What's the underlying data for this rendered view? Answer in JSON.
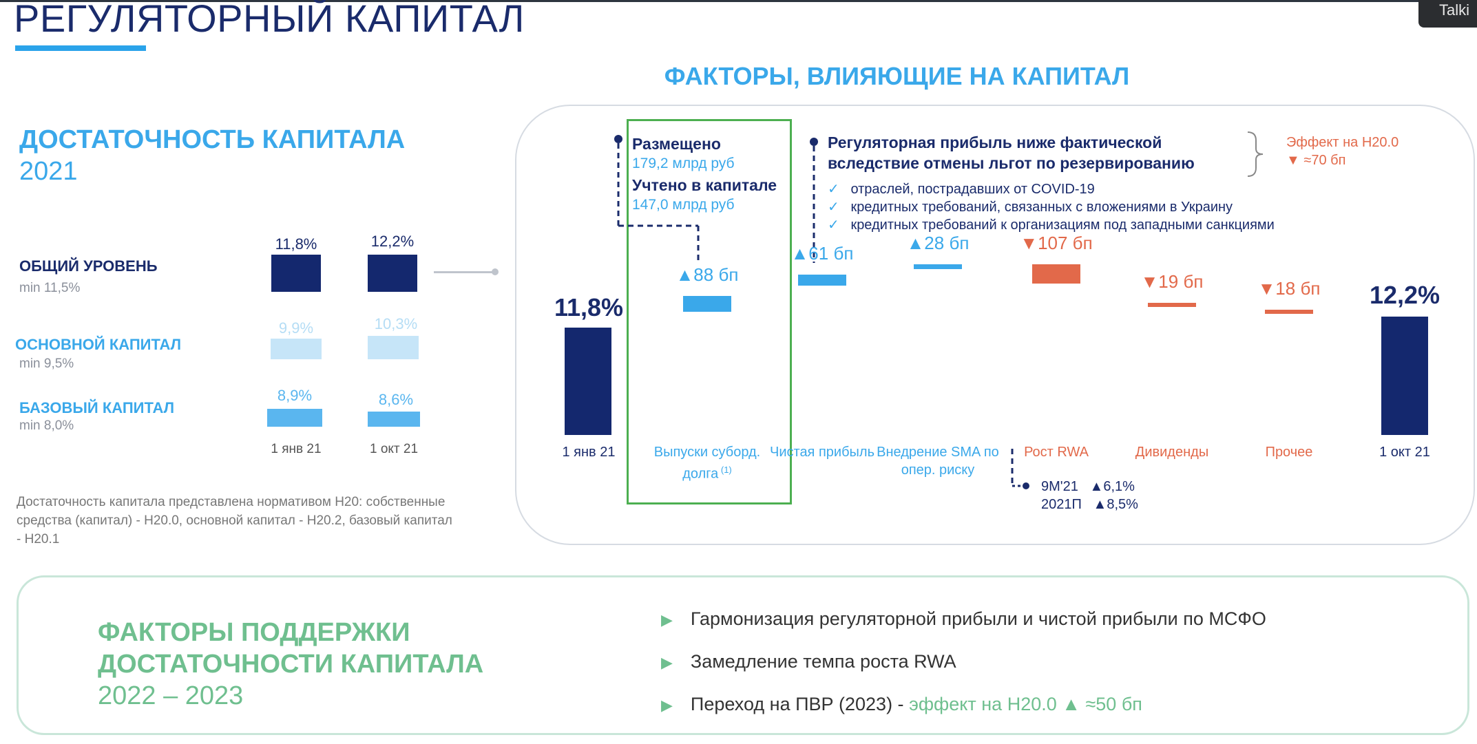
{
  "header": {
    "title": "РЕГУЛЯТОРНЫЙ КАПИТАЛ",
    "corner_badge": "Talki"
  },
  "adequacy": {
    "title": "ДОСТАТОЧНОСТЬ КАПИТАЛА",
    "year": "2021",
    "rows": [
      {
        "label": "ОБЩИЙ УРОВЕНЬ",
        "min": "min 11,5%",
        "v1": "11,8%",
        "v2": "12,2%"
      },
      {
        "label": "ОСНОВНОЙ КАПИТАЛ",
        "min": "min 9,5%",
        "v1": "9,9%",
        "v2": "10,3%"
      },
      {
        "label": "БАЗОВЫЙ КАПИТАЛ",
        "min": "min 8,0%",
        "v1": "8,9%",
        "v2": "8,6%"
      }
    ],
    "dates": [
      "1 янв 21",
      "1 окт 21"
    ],
    "footnote": "Достаточность капитала представлена нормативом Н20: собственные средства (капитал) - Н20.0, основной капитал - Н20.2, базовый капитал - Н20.1",
    "colors": {
      "total": "#14286e",
      "core": "#c6e5f8",
      "base": "#5ab6ef"
    }
  },
  "factors": {
    "title": "ФАКТОРЫ, ВЛИЯЮЩИЕ НА КАПИТАЛ",
    "placed": {
      "label1": "Размещено",
      "value1": "179,2 млрд руб",
      "label2": "Учтено в капитале",
      "value2": "147,0 млрд руб"
    },
    "reg_profit": {
      "title_line1": "Регуляторная прибыль ниже фактической",
      "title_line2": "вследствие отмены льгот по резервированию",
      "items": [
        "отраслей, пострадавших от COVID-19",
        "кредитных требований, связанных с вложениями в Украину",
        "кредитных требований к организациям под западными санкциями"
      ],
      "effect_label": "Эффект на Н20.0",
      "effect_value": "▼ ≈70 бп",
      "check": "✓"
    },
    "rwa_note": {
      "row1_label": "9М'21",
      "row1_value": "▲6,1%",
      "row2_label": "2021П",
      "row2_value": "▲8,5%"
    }
  },
  "chart_data": {
    "type": "bar",
    "subtype": "waterfall",
    "unit": "bp",
    "start": {
      "category": "1 янв 21",
      "value": 11.8,
      "label": "11,8%"
    },
    "end": {
      "category": "1 окт 21",
      "value": 12.2,
      "label": "12,2%"
    },
    "steps": [
      {
        "category": "Выпуски суборд. долга",
        "footnote": "(1)",
        "delta_bp": 88,
        "label": "▲88 бп",
        "color": "#3aa8ea"
      },
      {
        "category": "Чистая прибыль",
        "delta_bp": 61,
        "label": "▲61 бп",
        "color": "#3aa8ea"
      },
      {
        "category": "Внедрение SMA по опер. риску",
        "delta_bp": 28,
        "label": "▲28 бп",
        "color": "#3aa8ea"
      },
      {
        "category": "Рост RWA",
        "delta_bp": -107,
        "label": "▼107 бп",
        "color": "#e2694a"
      },
      {
        "category": "Дивиденды",
        "delta_bp": -19,
        "label": "▼19 бп",
        "color": "#e2694a"
      },
      {
        "category": "Прочее",
        "delta_bp": -18,
        "label": "▼18 бп",
        "color": "#e2694a"
      }
    ],
    "bar_color": "#14286e"
  },
  "support": {
    "title_line1": "ФАКТОРЫ ПОДДЕРЖКИ",
    "title_line2": "ДОСТАТОЧНОСТИ КАПИТАЛА",
    "years": "2022 – 2023",
    "bullet": "▶",
    "items": [
      "Гармонизация регуляторной прибыли и чистой прибыли по МСФО",
      "Замедление темпа роста RWA"
    ],
    "item3_main": "Переход на ПВР (2023) - ",
    "item3_effect": "эффект на Н20.0 ▲ ≈50 бп"
  }
}
